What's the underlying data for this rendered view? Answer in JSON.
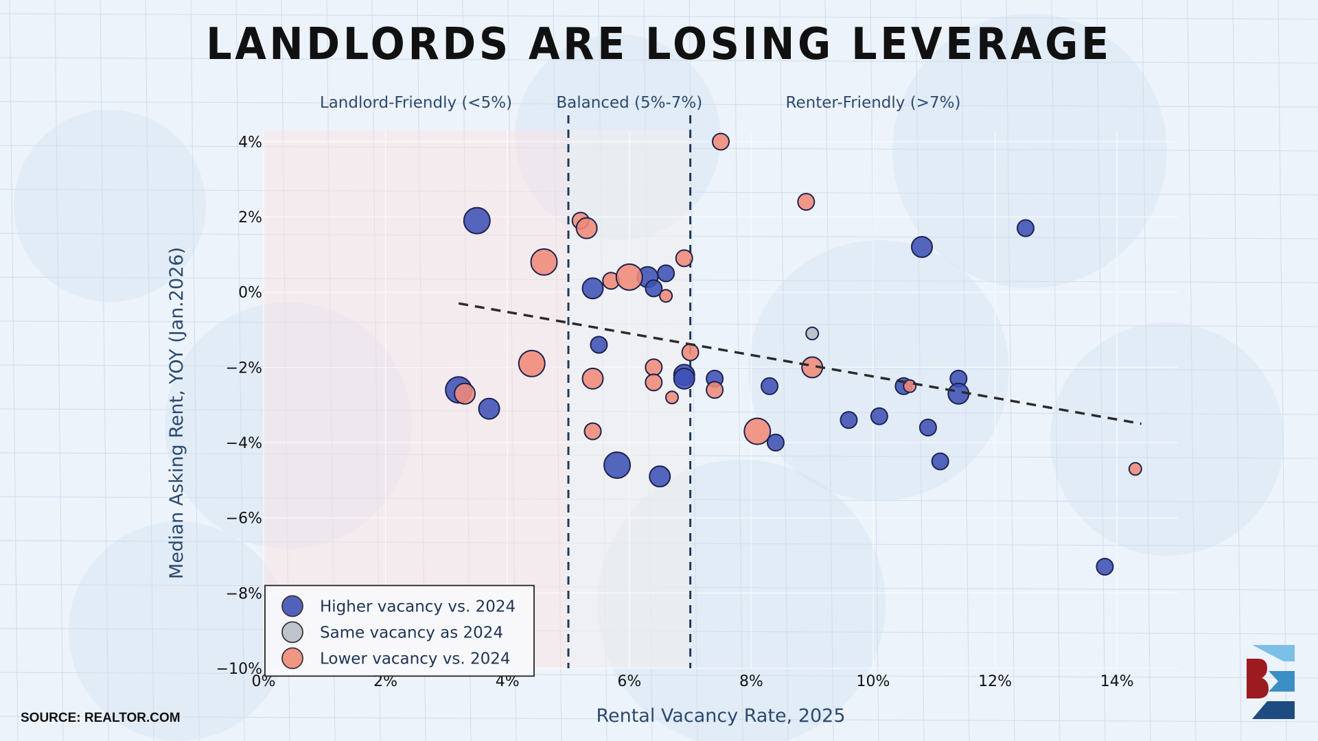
{
  "title": "LANDLORDS ARE LOSING LEVERAGE",
  "source": "SOURCE: REALTOR.COM",
  "colors": {
    "higher": "#3f51b5",
    "same": "#b7bdc6",
    "lower": "#f08a78",
    "stroke": "#1c2250",
    "trend": "#2b2b2b",
    "axis_text": "#2c4a6e",
    "zone_landlord": "#fde3e0",
    "zone_balanced": "#eeeeee",
    "logo_light": "#7cc0e8",
    "logo_mid": "#3b8fc4",
    "logo_dark": "#1c4c80",
    "logo_red": "#9b1b21"
  },
  "chart_data": {
    "type": "scatter",
    "xlabel": "Rental Vacancy Rate, 2025",
    "ylabel": "Median Asking Rent, YOY (Jan.2026)",
    "xlim": [
      0,
      15
    ],
    "ylim": [
      -10,
      4.3
    ],
    "x_ticks": [
      {
        "value": 0,
        "label": "0%"
      },
      {
        "value": 2,
        "label": "2%"
      },
      {
        "value": 4,
        "label": "4%"
      },
      {
        "value": 6,
        "label": "6%"
      },
      {
        "value": 8,
        "label": "8%"
      },
      {
        "value": 10,
        "label": "10%"
      },
      {
        "value": 12,
        "label": "12%"
      },
      {
        "value": 14,
        "label": "14%"
      }
    ],
    "y_ticks": [
      {
        "value": 4,
        "label": "4%"
      },
      {
        "value": 2,
        "label": "2%"
      },
      {
        "value": 0,
        "label": "0%"
      },
      {
        "value": -2,
        "label": "−2%"
      },
      {
        "value": -4,
        "label": "−4%"
      },
      {
        "value": -6,
        "label": "−6%"
      },
      {
        "value": -8,
        "label": "−8%"
      },
      {
        "value": -10,
        "label": "−10%"
      }
    ],
    "zones": [
      {
        "label": "Landlord-Friendly (<5%)",
        "from": 0,
        "to": 5,
        "label_x": 2.5
      },
      {
        "label": "Balanced (5%-7%)",
        "from": 5,
        "to": 7,
        "label_x": 6.0
      },
      {
        "label": "Renter-Friendly (>7%)",
        "from": 7,
        "to": 15,
        "label_x": 10.0
      }
    ],
    "dividers": [
      5,
      7
    ],
    "trendline": {
      "x1": 3.2,
      "y1": -0.3,
      "x2": 14.4,
      "y2": -3.5
    },
    "legend": {
      "placement": "bottom-left",
      "entries": [
        {
          "key": "higher",
          "label": "Higher vacancy vs. 2024"
        },
        {
          "key": "same",
          "label": "Same vacancy as 2024"
        },
        {
          "key": "lower",
          "label": "Lower vacancy vs. 2024"
        }
      ]
    },
    "series": [
      {
        "name": "Higher vacancy vs. 2024",
        "key": "higher",
        "points": [
          {
            "x": 3.5,
            "y": 1.9,
            "size": 3
          },
          {
            "x": 5.4,
            "y": 0.1,
            "size": 2
          },
          {
            "x": 6.3,
            "y": 0.4,
            "size": 2
          },
          {
            "x": 6.4,
            "y": 0.1,
            "size": 1
          },
          {
            "x": 6.6,
            "y": 0.5,
            "size": 1
          },
          {
            "x": 5.5,
            "y": -1.4,
            "size": 1
          },
          {
            "x": 3.2,
            "y": -2.6,
            "size": 3
          },
          {
            "x": 3.7,
            "y": -3.1,
            "size": 2
          },
          {
            "x": 6.9,
            "y": -2.2,
            "size": 2
          },
          {
            "x": 6.9,
            "y": -2.3,
            "size": 2
          },
          {
            "x": 7.4,
            "y": -2.3,
            "size": 1
          },
          {
            "x": 5.8,
            "y": -4.6,
            "size": 3
          },
          {
            "x": 6.5,
            "y": -4.9,
            "size": 2
          },
          {
            "x": 8.3,
            "y": -2.5,
            "size": 1
          },
          {
            "x": 8.4,
            "y": -4.0,
            "size": 1
          },
          {
            "x": 9.6,
            "y": -3.4,
            "size": 1
          },
          {
            "x": 10.1,
            "y": -3.3,
            "size": 1
          },
          {
            "x": 10.5,
            "y": -2.5,
            "size": 1
          },
          {
            "x": 10.8,
            "y": 1.2,
            "size": 2
          },
          {
            "x": 10.9,
            "y": -3.6,
            "size": 1
          },
          {
            "x": 11.1,
            "y": -4.5,
            "size": 1
          },
          {
            "x": 11.4,
            "y": -2.3,
            "size": 1
          },
          {
            "x": 11.4,
            "y": -2.7,
            "size": 2
          },
          {
            "x": 12.5,
            "y": 1.7,
            "size": 1
          },
          {
            "x": 13.8,
            "y": -7.3,
            "size": 1
          }
        ]
      },
      {
        "name": "Same vacancy as 2024",
        "key": "same",
        "points": [
          {
            "x": 9.0,
            "y": -1.1,
            "size": 0
          }
        ]
      },
      {
        "name": "Lower vacancy vs. 2024",
        "key": "lower",
        "points": [
          {
            "x": 7.5,
            "y": 4.0,
            "size": 1
          },
          {
            "x": 8.9,
            "y": 2.4,
            "size": 1
          },
          {
            "x": 5.2,
            "y": 1.9,
            "size": 1
          },
          {
            "x": 5.3,
            "y": 1.7,
            "size": 2
          },
          {
            "x": 4.6,
            "y": 0.8,
            "size": 3
          },
          {
            "x": 5.7,
            "y": 0.3,
            "size": 1
          },
          {
            "x": 6.0,
            "y": 0.4,
            "size": 3
          },
          {
            "x": 6.9,
            "y": 0.9,
            "size": 1
          },
          {
            "x": 6.6,
            "y": -0.1,
            "size": 0
          },
          {
            "x": 7.0,
            "y": -1.6,
            "size": 1
          },
          {
            "x": 9.0,
            "y": -2.0,
            "size": 2
          },
          {
            "x": 4.4,
            "y": -1.9,
            "size": 3
          },
          {
            "x": 5.4,
            "y": -2.3,
            "size": 2
          },
          {
            "x": 6.4,
            "y": -2.0,
            "size": 1
          },
          {
            "x": 6.4,
            "y": -2.4,
            "size": 1
          },
          {
            "x": 6.7,
            "y": -2.8,
            "size": 0
          },
          {
            "x": 7.4,
            "y": -2.6,
            "size": 1
          },
          {
            "x": 3.3,
            "y": -2.7,
            "size": 2
          },
          {
            "x": 5.4,
            "y": -3.7,
            "size": 1
          },
          {
            "x": 8.1,
            "y": -3.7,
            "size": 3
          },
          {
            "x": 10.6,
            "y": -2.5,
            "size": 0
          },
          {
            "x": 14.3,
            "y": -4.7,
            "size": 0
          }
        ]
      }
    ]
  }
}
